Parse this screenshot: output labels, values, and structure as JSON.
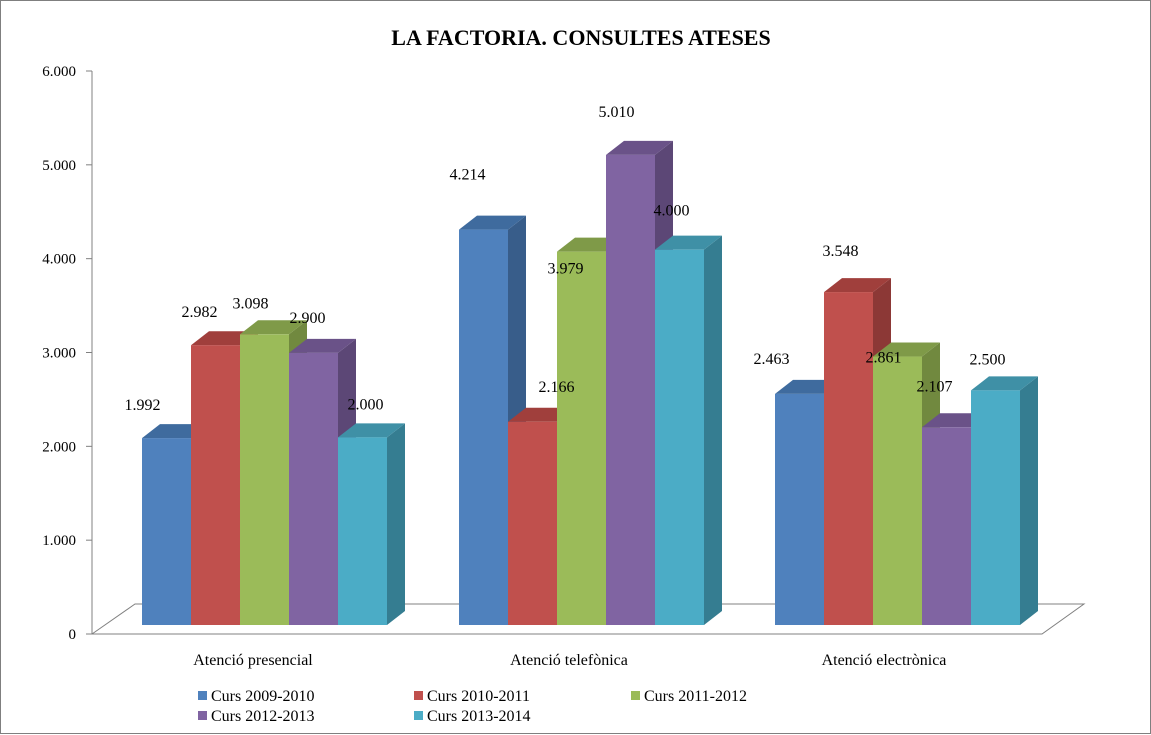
{
  "chart_data": {
    "type": "bar",
    "title": "LA FACTORIA. CONSULTES ATESES",
    "xlabel": "",
    "ylabel": "",
    "ylim": [
      0,
      6000
    ],
    "y_ticks": [
      {
        "value": 0,
        "label": "0"
      },
      {
        "value": 1000,
        "label": "1.000"
      },
      {
        "value": 2000,
        "label": "2.000"
      },
      {
        "value": 3000,
        "label": "3.000"
      },
      {
        "value": 4000,
        "label": "4.000"
      },
      {
        "value": 5000,
        "label": "5.000"
      },
      {
        "value": 6000,
        "label": "6.000"
      }
    ],
    "categories": [
      "Atenció presencial",
      "Atenció telefònica",
      "Atenció electrònica"
    ],
    "series": [
      {
        "name": "Curs 2009-2010",
        "color": "#4f81bd",
        "side": "#385d8a",
        "top": "#3f6b9e",
        "values": [
          1992,
          4214,
          2463
        ],
        "labels": [
          "1.992",
          "4.214",
          "2.463"
        ]
      },
      {
        "name": "Curs 2010-2011",
        "color": "#c0504d",
        "side": "#8c3836",
        "top": "#a03f3c",
        "values": [
          2982,
          2166,
          3548
        ],
        "labels": [
          "2.982",
          "2.166",
          "3.548"
        ]
      },
      {
        "name": "Curs 2011-2012",
        "color": "#9bbb59",
        "side": "#71893f",
        "top": "#7f9a48",
        "values": [
          3098,
          3979,
          2861
        ],
        "labels": [
          "3.098",
          "3.979",
          "2.861"
        ]
      },
      {
        "name": "Curs 2012-2013",
        "color": "#8064a2",
        "side": "#5c4776",
        "top": "#6a5288",
        "values": [
          2900,
          5010,
          2107
        ],
        "labels": [
          "2.900",
          "5.010",
          "2.107"
        ]
      },
      {
        "name": "Curs 2013-2014",
        "color": "#4bacc6",
        "side": "#357d91",
        "top": "#3f90a6",
        "values": [
          2000,
          4000,
          2500
        ],
        "labels": [
          "2.000",
          "4.000",
          "2.500"
        ]
      }
    ],
    "grid": false,
    "legend": "bottom"
  }
}
